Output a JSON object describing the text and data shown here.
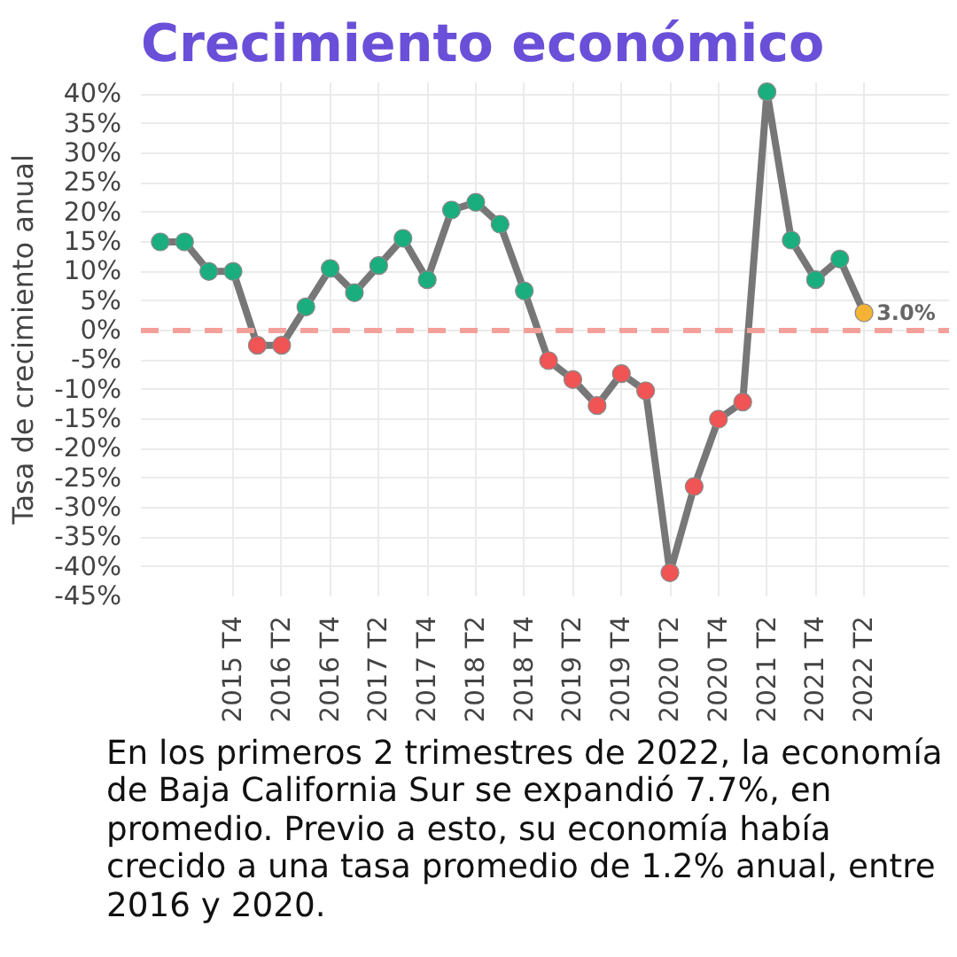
{
  "chart_data": {
    "type": "line",
    "title": "Crecimiento económico",
    "ylabel": "Tasa de crecimiento anual",
    "categories": [
      null,
      null,
      null,
      "2015 T4",
      null,
      "2016 T2",
      null,
      "2016 T4",
      null,
      "2017 T2",
      null,
      "2017 T4",
      null,
      "2018 T2",
      null,
      "2018 T4",
      null,
      "2019 T2",
      null,
      "2019 T4",
      null,
      "2020 T2",
      null,
      "2020 T4",
      null,
      "2021 T2",
      null,
      "2021 T4",
      null,
      "2022 T2"
    ],
    "series": [
      {
        "color": "#777777",
        "values": [
          15,
          15,
          10,
          10,
          -2.5,
          -2.5,
          4,
          10.5,
          6.4,
          11,
          15.6,
          8.6,
          20.4,
          21.7,
          18,
          6.7,
          -5.1,
          -8.3,
          -12.7,
          -7.3,
          -10.2,
          -41,
          -26.4,
          -15,
          -12.1,
          40.4,
          15.3,
          8.6,
          12.1,
          3.0
        ],
        "colors": [
          "#1aae7e",
          "#1aae7e",
          "#1aae7e",
          "#1aae7e",
          "#f05454",
          "#f05454",
          "#1aae7e",
          "#1aae7e",
          "#1aae7e",
          "#1aae7e",
          "#1aae7e",
          "#1aae7e",
          "#1aae7e",
          "#1aae7e",
          "#1aae7e",
          "#1aae7e",
          "#f05454",
          "#f05454",
          "#f05454",
          "#f05454",
          "#f05454",
          "#f05454",
          "#f05454",
          "#f05454",
          "#f05454",
          "#1aae7e",
          "#1aae7e",
          "#1aae7e",
          "#1aae7e",
          "#f5b335"
        ],
        "value_labels": [
          null,
          null,
          null,
          null,
          null,
          null,
          null,
          null,
          null,
          null,
          null,
          null,
          null,
          null,
          null,
          null,
          null,
          null,
          null,
          null,
          null,
          null,
          null,
          null,
          null,
          null,
          null,
          null,
          null,
          "3.0%"
        ]
      }
    ],
    "ylim": [
      -45,
      42
    ],
    "yticks": [
      {
        "value": 40,
        "label": "40%"
      },
      {
        "value": 35,
        "label": "35%"
      },
      {
        "value": 30,
        "label": "30%"
      },
      {
        "value": 25,
        "label": "25%"
      },
      {
        "value": 20,
        "label": "20%"
      },
      {
        "value": 15,
        "label": "15%"
      },
      {
        "value": 10,
        "label": "10%"
      },
      {
        "value": 5,
        "label": "5%"
      },
      {
        "value": 0,
        "label": "0%"
      },
      {
        "value": -5,
        "label": "-5%"
      },
      {
        "value": -10,
        "label": "-10%"
      },
      {
        "value": -15,
        "label": "-15%"
      },
      {
        "value": -20,
        "label": "-20%"
      },
      {
        "value": -25,
        "label": "-25%"
      },
      {
        "value": -30,
        "label": "-30%"
      },
      {
        "value": -35,
        "label": "-35%"
      },
      {
        "value": -40,
        "label": "-40%"
      },
      {
        "value": -45,
        "label": "-45%"
      }
    ],
    "ref_lines": [
      {
        "axis": "y",
        "value": 0,
        "color": "#f4a09a",
        "line_style": "dashed"
      }
    ],
    "grid": true,
    "marker": "circle",
    "line_style": "solid",
    "annotations": [
      "En los primeros 2 trimestres de 2022, la economía de Baja California Sur se expandió 7.7%, en promedio. Previo a esto, su economía había crecido a una tasa promedio de 1.2% anual, entre 2016 y 2020."
    ]
  }
}
